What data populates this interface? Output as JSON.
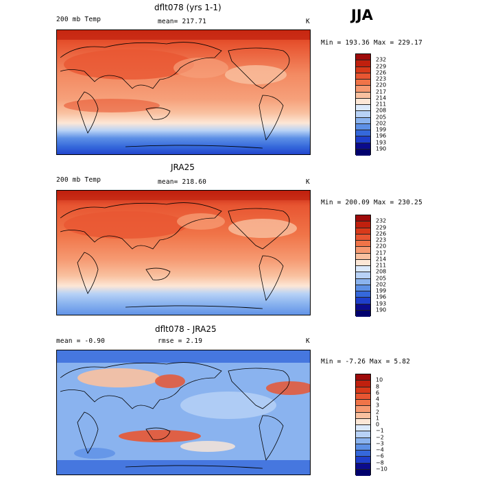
{
  "season": "JJA",
  "panels": [
    {
      "id": "model",
      "title": "dflt078 (yrs 1-1)",
      "left_label": "200 mb Temp",
      "center_label": "mean= 217.71",
      "unit": "K",
      "stats": "Min = 193.36  Max = 229.17",
      "colorbar": [
        "232",
        "229",
        "226",
        "223",
        "220",
        "217",
        "214",
        "211",
        "208",
        "205",
        "202",
        "199",
        "196",
        "193",
        "190"
      ]
    },
    {
      "id": "obs",
      "title": "JRA25",
      "left_label": "200 mb Temp",
      "center_label": "mean= 218.60",
      "unit": "K",
      "stats": "Min = 200.09  Max = 230.25",
      "colorbar": [
        "232",
        "229",
        "226",
        "223",
        "220",
        "217",
        "214",
        "211",
        "208",
        "205",
        "202",
        "199",
        "196",
        "193",
        "190"
      ]
    },
    {
      "id": "diff",
      "title": "dflt078 - JRA25",
      "left_label": "mean =   -0.90",
      "center_label": "rmse =    2.19",
      "unit": "K",
      "stats": "Min =  -7.26  Max =   5.82",
      "colorbar": [
        "10",
        "8",
        "6",
        "4",
        "3",
        "2",
        "1",
        "0",
        "−1",
        "−2",
        "−3",
        "−4",
        "−6",
        "−8",
        "−10"
      ]
    }
  ],
  "colors": {
    "abs_scale": [
      "#9e0a0a",
      "#c0200e",
      "#d83a1a",
      "#e85632",
      "#f07448",
      "#f69a72",
      "#f9c1a0",
      "#fde7d6",
      "#dbe9fb",
      "#b8d2f6",
      "#8ab3ef",
      "#5d90e6",
      "#3568db",
      "#1f3fcb",
      "#0b0b8c",
      "#00006e"
    ],
    "land_outline": "#000000"
  }
}
